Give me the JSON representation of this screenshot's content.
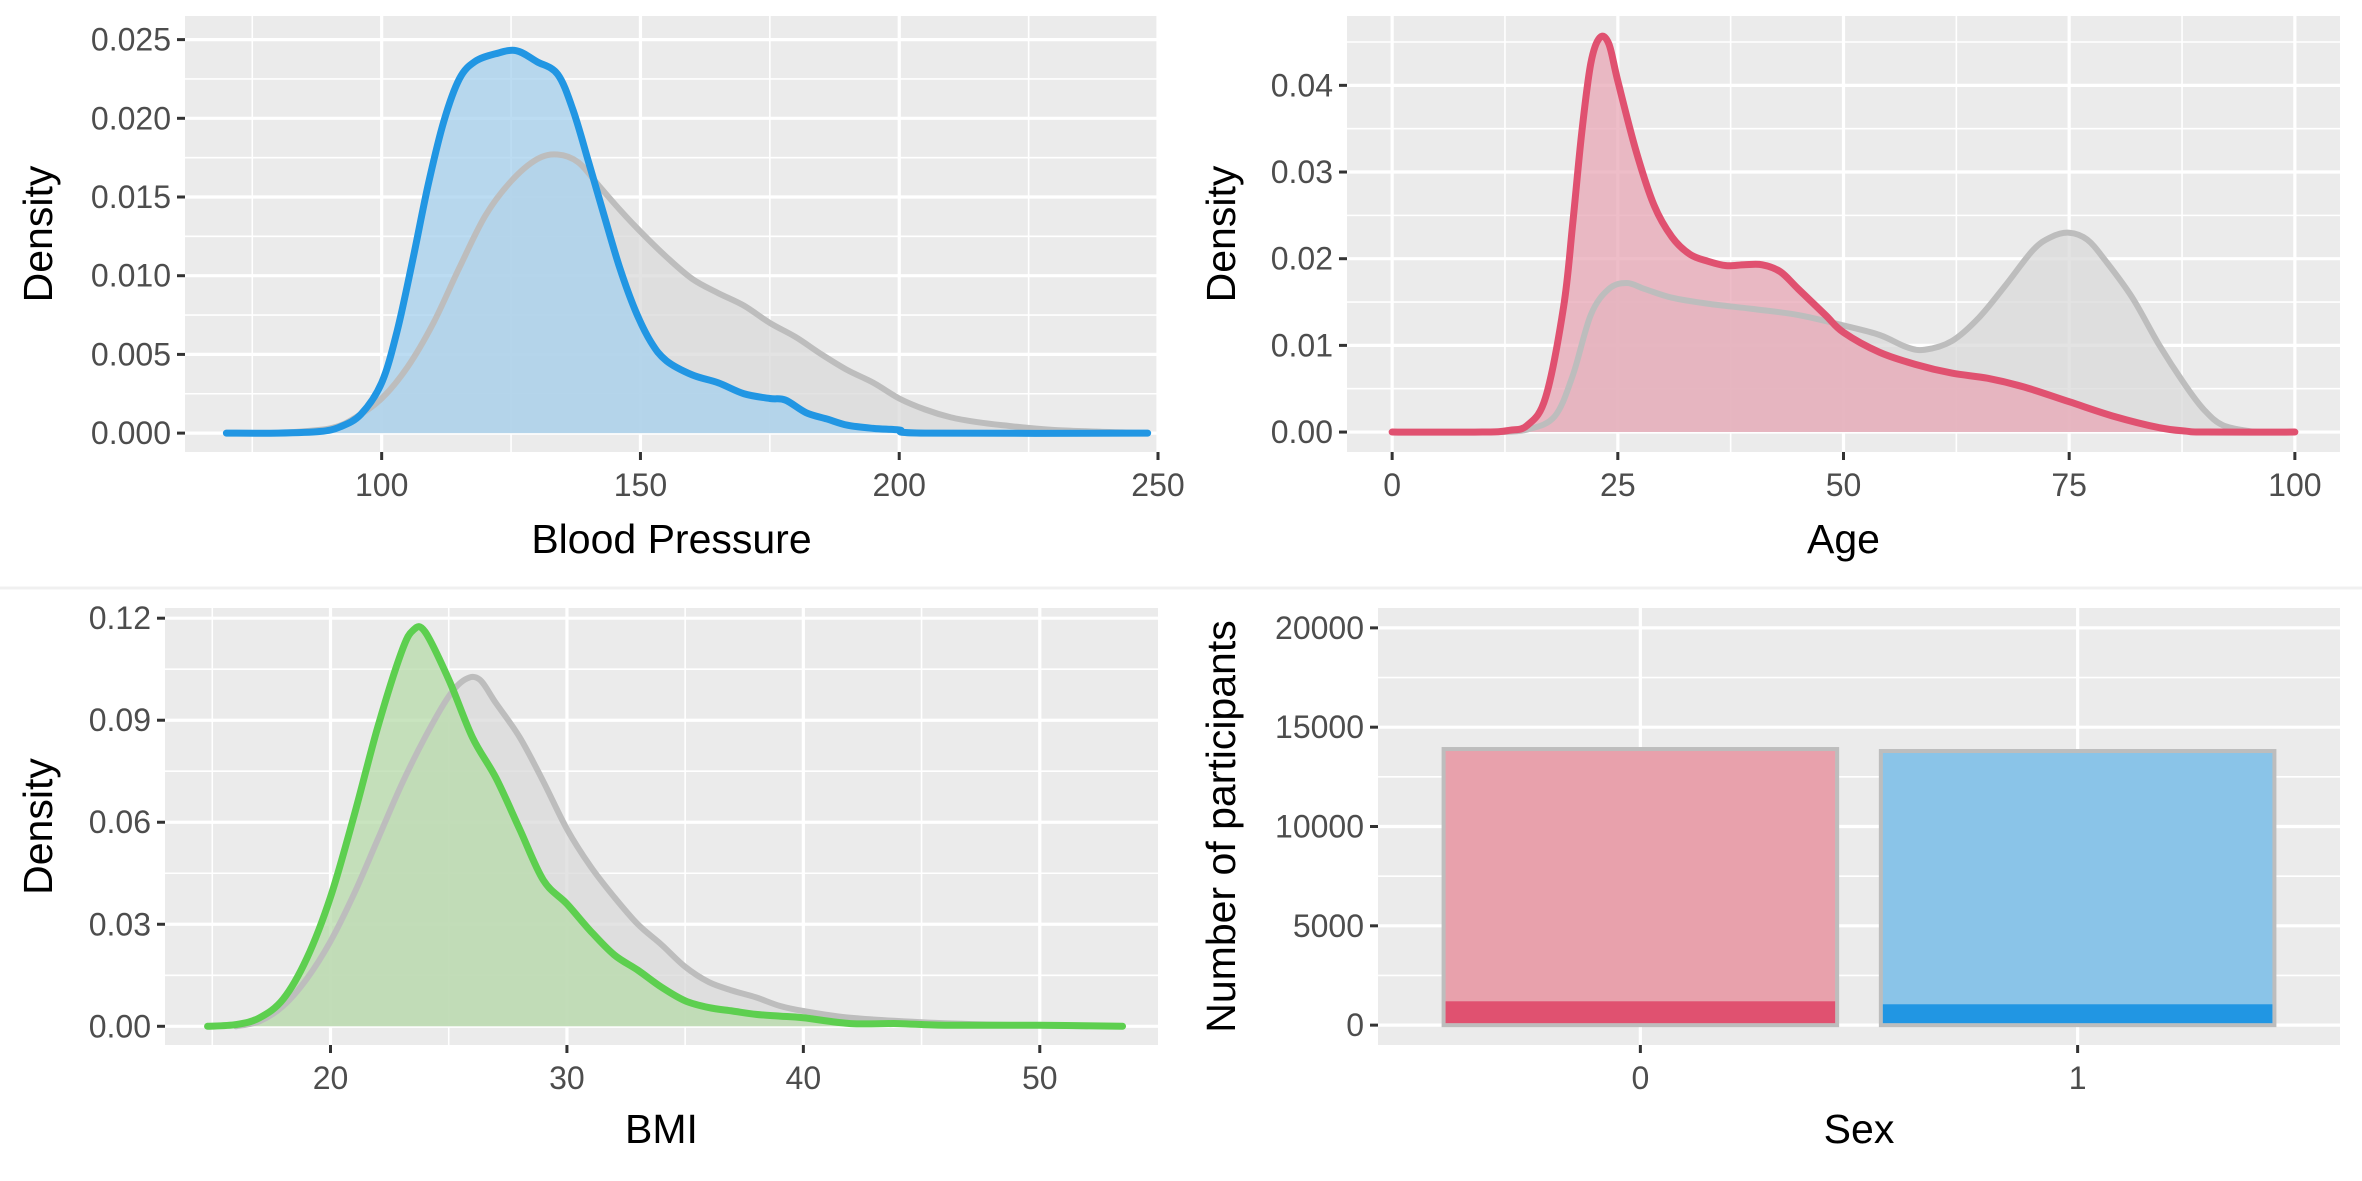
{
  "chart_data": [
    {
      "id": "bp",
      "type": "area",
      "xlabel": "Blood Pressure",
      "ylabel": "Density",
      "xlim": [
        62,
        250
      ],
      "ylim": [
        -0.0012,
        0.0265
      ],
      "xticks": [
        100,
        150,
        200,
        250
      ],
      "yticks": [
        0,
        0.005,
        0.01,
        0.015,
        0.02,
        0.025
      ],
      "ytick_labels": [
        "0.000",
        "0.005",
        "0.010",
        "0.015",
        "0.020",
        "0.025"
      ],
      "grid": true,
      "series": [
        {
          "role": "background",
          "color": "#bdbdbd",
          "fill": "#d9d9d9",
          "points": [
            [
              80,
              0
            ],
            [
              90,
              0.0003
            ],
            [
              95,
              0.001
            ],
            [
              100,
              0.0022
            ],
            [
              105,
              0.0042
            ],
            [
              110,
              0.007
            ],
            [
              115,
              0.0105
            ],
            [
              120,
              0.0138
            ],
            [
              125,
              0.016
            ],
            [
              130,
              0.0174
            ],
            [
              134,
              0.0177
            ],
            [
              138,
              0.0172
            ],
            [
              142,
              0.0157
            ],
            [
              146,
              0.0142
            ],
            [
              150,
              0.0128
            ],
            [
              155,
              0.0112
            ],
            [
              160,
              0.0098
            ],
            [
              165,
              0.0089
            ],
            [
              170,
              0.0081
            ],
            [
              175,
              0.007
            ],
            [
              180,
              0.0061
            ],
            [
              185,
              0.005
            ],
            [
              190,
              0.004
            ],
            [
              195,
              0.0032
            ],
            [
              200,
              0.0022
            ],
            [
              205,
              0.0015
            ],
            [
              210,
              0.001
            ],
            [
              215,
              0.0007
            ],
            [
              220,
              0.0005
            ],
            [
              230,
              0.0002
            ],
            [
              248,
              0
            ]
          ]
        },
        {
          "role": "subset",
          "color": "#2196e3",
          "fill": "#a6d0ee",
          "points": [
            [
              70,
              0
            ],
            [
              80,
              0
            ],
            [
              88,
              0.0001
            ],
            [
              92,
              0.0004
            ],
            [
              96,
              0.0012
            ],
            [
              100,
              0.0032
            ],
            [
              103,
              0.0065
            ],
            [
              106,
              0.011
            ],
            [
              109,
              0.0158
            ],
            [
              112,
              0.0198
            ],
            [
              115,
              0.0225
            ],
            [
              118,
              0.0236
            ],
            [
              122,
              0.0241
            ],
            [
              126,
              0.0243
            ],
            [
              130,
              0.0236
            ],
            [
              134,
              0.0228
            ],
            [
              137,
              0.0205
            ],
            [
              140,
              0.0172
            ],
            [
              143,
              0.0138
            ],
            [
              146,
              0.0105
            ],
            [
              149,
              0.0078
            ],
            [
              152,
              0.0058
            ],
            [
              155,
              0.0046
            ],
            [
              160,
              0.0037
            ],
            [
              165,
              0.0032
            ],
            [
              170,
              0.0025
            ],
            [
              175,
              0.0022
            ],
            [
              178,
              0.0021
            ],
            [
              182,
              0.0013
            ],
            [
              186,
              0.0009
            ],
            [
              190,
              0.0005
            ],
            [
              195,
              0.0003
            ],
            [
              200,
              0.0002
            ],
            [
              205,
              0
            ],
            [
              248,
              0
            ]
          ]
        }
      ]
    },
    {
      "id": "age",
      "type": "area",
      "xlabel": "Age",
      "ylabel": "Density",
      "xlim": [
        -5,
        105
      ],
      "ylim": [
        -0.0023,
        0.048
      ],
      "xticks": [
        0,
        25,
        50,
        75,
        100
      ],
      "yticks": [
        0,
        0.01,
        0.02,
        0.03,
        0.04
      ],
      "ytick_labels": [
        "0.00",
        "0.01",
        "0.02",
        "0.03",
        "0.04"
      ],
      "grid": true,
      "series": [
        {
          "role": "background",
          "color": "#bdbdbd",
          "fill": "#d9d9d9",
          "points": [
            [
              12,
              0
            ],
            [
              15,
              0.0003
            ],
            [
              18,
              0.0018
            ],
            [
              20,
              0.0065
            ],
            [
              22,
              0.0135
            ],
            [
              24,
              0.0165
            ],
            [
              26,
              0.0172
            ],
            [
              28,
              0.0165
            ],
            [
              31,
              0.0155
            ],
            [
              35,
              0.0148
            ],
            [
              40,
              0.0142
            ],
            [
              45,
              0.0135
            ],
            [
              50,
              0.0123
            ],
            [
              54,
              0.0112
            ],
            [
              57,
              0.0098
            ],
            [
              59,
              0.0095
            ],
            [
              62,
              0.0105
            ],
            [
              65,
              0.0132
            ],
            [
              68,
              0.017
            ],
            [
              71,
              0.021
            ],
            [
              73,
              0.0225
            ],
            [
              75,
              0.023
            ],
            [
              77,
              0.0222
            ],
            [
              79,
              0.0198
            ],
            [
              82,
              0.0155
            ],
            [
              85,
              0.01
            ],
            [
              88,
              0.0052
            ],
            [
              90,
              0.0025
            ],
            [
              92,
              0.0008
            ],
            [
              95,
              0.0001
            ],
            [
              97,
              0
            ]
          ]
        },
        {
          "role": "subset",
          "color": "#e05170",
          "fill": "#e8a7b6",
          "points": [
            [
              0,
              0
            ],
            [
              10,
              0
            ],
            [
              13,
              0.0002
            ],
            [
              15,
              0.0008
            ],
            [
              17,
              0.004
            ],
            [
              19,
              0.0145
            ],
            [
              20,
              0.024
            ],
            [
              21,
              0.0345
            ],
            [
              22,
              0.0425
            ],
            [
              23,
              0.0455
            ],
            [
              24,
              0.0448
            ],
            [
              25,
              0.0405
            ],
            [
              27,
              0.0325
            ],
            [
              29,
              0.0262
            ],
            [
              31,
              0.0225
            ],
            [
              33,
              0.0205
            ],
            [
              35,
              0.0197
            ],
            [
              37,
              0.0192
            ],
            [
              39,
              0.0193
            ],
            [
              41,
              0.0193
            ],
            [
              43,
              0.0185
            ],
            [
              45,
              0.0165
            ],
            [
              48,
              0.0135
            ],
            [
              50,
              0.0115
            ],
            [
              54,
              0.0092
            ],
            [
              58,
              0.0078
            ],
            [
              62,
              0.0068
            ],
            [
              66,
              0.0062
            ],
            [
              70,
              0.0052
            ],
            [
              75,
              0.0035
            ],
            [
              80,
              0.0018
            ],
            [
              85,
              0.0005
            ],
            [
              88,
              0.0001
            ],
            [
              90,
              0
            ],
            [
              100,
              0
            ]
          ]
        }
      ]
    },
    {
      "id": "bmi",
      "type": "area",
      "xlabel": "BMI",
      "ylabel": "Density",
      "xlim": [
        13,
        55
      ],
      "ylim": [
        -0.0055,
        0.123
      ],
      "xticks": [
        20,
        30,
        40,
        50
      ],
      "yticks": [
        0,
        0.03,
        0.06,
        0.09,
        0.12
      ],
      "ytick_labels": [
        "0.00",
        "0.03",
        "0.06",
        "0.09",
        "0.12"
      ],
      "grid": true,
      "series": [
        {
          "role": "background",
          "color": "#bdbdbd",
          "fill": "#d9d9d9",
          "points": [
            [
              16,
              0
            ],
            [
              17,
              0.0015
            ],
            [
              18,
              0.006
            ],
            [
              19,
              0.014
            ],
            [
              20,
              0.025
            ],
            [
              21,
              0.039
            ],
            [
              22,
              0.055
            ],
            [
              23,
              0.071
            ],
            [
              24,
              0.085
            ],
            [
              25,
              0.097
            ],
            [
              25.7,
              0.102
            ],
            [
              26.3,
              0.102
            ],
            [
              27,
              0.095
            ],
            [
              28,
              0.085
            ],
            [
              29,
              0.072
            ],
            [
              30,
              0.058
            ],
            [
              31,
              0.047
            ],
            [
              32,
              0.038
            ],
            [
              33,
              0.03
            ],
            [
              34,
              0.024
            ],
            [
              35,
              0.0175
            ],
            [
              36,
              0.013
            ],
            [
              37,
              0.0105
            ],
            [
              38,
              0.0085
            ],
            [
              39,
              0.006
            ],
            [
              40,
              0.0045
            ],
            [
              42,
              0.0025
            ],
            [
              45,
              0.0012
            ],
            [
              48,
              0.0005
            ],
            [
              52,
              0
            ]
          ]
        },
        {
          "role": "subset",
          "color": "#5dcf4f",
          "fill": "#b7dba9",
          "points": [
            [
              14.8,
              0
            ],
            [
              16,
              0.0005
            ],
            [
              17,
              0.0025
            ],
            [
              18,
              0.008
            ],
            [
              19,
              0.02
            ],
            [
              20,
              0.038
            ],
            [
              21,
              0.062
            ],
            [
              22,
              0.088
            ],
            [
              23,
              0.11
            ],
            [
              23.5,
              0.1165
            ],
            [
              24,
              0.116
            ],
            [
              25,
              0.102
            ],
            [
              26,
              0.085
            ],
            [
              27,
              0.073
            ],
            [
              28,
              0.058
            ],
            [
              29,
              0.043
            ],
            [
              30,
              0.036
            ],
            [
              31,
              0.028
            ],
            [
              32,
              0.021
            ],
            [
              33,
              0.0165
            ],
            [
              34,
              0.0115
            ],
            [
              35,
              0.0075
            ],
            [
              36,
              0.0055
            ],
            [
              37,
              0.0045
            ],
            [
              38,
              0.0035
            ],
            [
              39,
              0.003
            ],
            [
              40,
              0.0025
            ],
            [
              42,
              0.0008
            ],
            [
              44,
              0.0008
            ],
            [
              46,
              0.0003
            ],
            [
              50,
              0.0003
            ],
            [
              53.5,
              0
            ]
          ]
        }
      ]
    },
    {
      "id": "sex",
      "type": "bar",
      "xlabel": "Sex",
      "ylabel": "Number of participants",
      "categories": [
        "0",
        "1"
      ],
      "ylim": [
        -1000,
        21000
      ],
      "yticks": [
        0,
        5000,
        10000,
        15000,
        20000
      ],
      "ytick_labels": [
        "0",
        "5000",
        "10000",
        "15000",
        "20000"
      ],
      "grid": true,
      "series": [
        {
          "role": "total",
          "values": [
            13900,
            13800
          ],
          "colors": [
            "#e8a1ac",
            "#8ac4e8"
          ],
          "outline": "#bdbdbd"
        },
        {
          "role": "subset",
          "values": [
            1200,
            1050
          ],
          "colors": [
            "#e05170",
            "#2196e3"
          ]
        }
      ]
    }
  ]
}
